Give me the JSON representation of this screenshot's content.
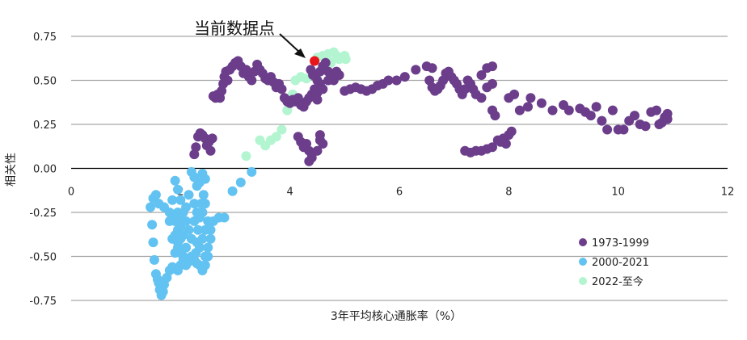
{
  "chart_data": {
    "type": "scatter",
    "title": "",
    "xlabel": "3年平均核心通胀率（%）",
    "ylabel": "相关性",
    "xlim": [
      0,
      12
    ],
    "ylim": [
      -0.75,
      0.8
    ],
    "x_ticks": [
      "0",
      "2",
      "4",
      "6",
      "8",
      "10",
      "12"
    ],
    "y_ticks": [
      "-0.75",
      "-0.50",
      "-0.25",
      "0.00",
      "0.25",
      "0.50",
      "0.75"
    ],
    "grid": "horizontal",
    "legend_position": "bottom-right",
    "annotation": {
      "text": "当前数据点",
      "x": 4.45,
      "y": 0.61,
      "color": "#e8151b"
    },
    "series": [
      {
        "name": "1973-1999",
        "color": "#6b3d8a",
        "points": [
          [
            2.25,
            0.08
          ],
          [
            2.28,
            0.12
          ],
          [
            2.32,
            0.18
          ],
          [
            2.36,
            0.2
          ],
          [
            2.4,
            0.19
          ],
          [
            2.45,
            0.17
          ],
          [
            2.48,
            0.13
          ],
          [
            2.52,
            0.15
          ],
          [
            2.58,
            0.17
          ],
          [
            2.55,
            0.1
          ],
          [
            2.6,
            0.41
          ],
          [
            2.64,
            0.4
          ],
          [
            2.68,
            0.42
          ],
          [
            2.72,
            0.4
          ],
          [
            2.75,
            0.44
          ],
          [
            2.78,
            0.48
          ],
          [
            2.8,
            0.52
          ],
          [
            2.83,
            0.55
          ],
          [
            2.86,
            0.5
          ],
          [
            2.9,
            0.56
          ],
          [
            2.95,
            0.58
          ],
          [
            3.0,
            0.6
          ],
          [
            3.05,
            0.61
          ],
          [
            3.1,
            0.58
          ],
          [
            3.15,
            0.54
          ],
          [
            3.2,
            0.56
          ],
          [
            3.25,
            0.52
          ],
          [
            3.3,
            0.5
          ],
          [
            3.35,
            0.55
          ],
          [
            3.4,
            0.59
          ],
          [
            3.45,
            0.56
          ],
          [
            3.5,
            0.54
          ],
          [
            3.55,
            0.51
          ],
          [
            3.6,
            0.5
          ],
          [
            3.65,
            0.52
          ],
          [
            3.7,
            0.49
          ],
          [
            3.75,
            0.46
          ],
          [
            3.8,
            0.48
          ],
          [
            3.85,
            0.45
          ],
          [
            3.9,
            0.4
          ],
          [
            3.95,
            0.38
          ],
          [
            4.0,
            0.37
          ],
          [
            4.05,
            0.39
          ],
          [
            4.1,
            0.38
          ],
          [
            4.15,
            0.4
          ],
          [
            4.2,
            0.36
          ],
          [
            4.25,
            0.35
          ],
          [
            4.3,
            0.38
          ],
          [
            4.35,
            0.4
          ],
          [
            4.4,
            0.42
          ],
          [
            4.45,
            0.45
          ],
          [
            4.5,
            0.5
          ],
          [
            4.42,
            0.53
          ],
          [
            4.38,
            0.56
          ],
          [
            4.55,
            0.55
          ],
          [
            4.6,
            0.58
          ],
          [
            4.65,
            0.6
          ],
          [
            4.7,
            0.55
          ],
          [
            4.75,
            0.52
          ],
          [
            4.8,
            0.5
          ],
          [
            4.85,
            0.55
          ],
          [
            4.9,
            0.53
          ],
          [
            4.55,
            0.48
          ],
          [
            4.5,
            0.43
          ],
          [
            4.5,
            0.39
          ],
          [
            4.6,
            0.45
          ],
          [
            4.7,
            0.5
          ],
          [
            4.15,
            0.18
          ],
          [
            4.2,
            0.15
          ],
          [
            4.25,
            0.12
          ],
          [
            4.3,
            0.14
          ],
          [
            4.35,
            0.1
          ],
          [
            4.4,
            0.06
          ],
          [
            4.35,
            0.04
          ],
          [
            4.4,
            0.08
          ],
          [
            4.55,
            0.16
          ],
          [
            4.6,
            0.14
          ],
          [
            4.55,
            0.19
          ],
          [
            4.5,
            0.1
          ],
          [
            5.0,
            0.44
          ],
          [
            5.1,
            0.45
          ],
          [
            5.2,
            0.46
          ],
          [
            5.3,
            0.45
          ],
          [
            5.4,
            0.44
          ],
          [
            5.5,
            0.45
          ],
          [
            5.6,
            0.47
          ],
          [
            5.7,
            0.48
          ],
          [
            5.8,
            0.5
          ],
          [
            5.95,
            0.5
          ],
          [
            6.1,
            0.52
          ],
          [
            6.3,
            0.56
          ],
          [
            6.5,
            0.58
          ],
          [
            6.6,
            0.57
          ],
          [
            6.55,
            0.5
          ],
          [
            6.6,
            0.46
          ],
          [
            6.65,
            0.44
          ],
          [
            6.7,
            0.45
          ],
          [
            6.75,
            0.47
          ],
          [
            6.8,
            0.5
          ],
          [
            6.85,
            0.54
          ],
          [
            6.9,
            0.55
          ],
          [
            6.95,
            0.52
          ],
          [
            7.0,
            0.5
          ],
          [
            7.05,
            0.48
          ],
          [
            7.1,
            0.45
          ],
          [
            7.15,
            0.42
          ],
          [
            7.2,
            0.45
          ],
          [
            7.25,
            0.5
          ],
          [
            7.3,
            0.48
          ],
          [
            7.35,
            0.45
          ],
          [
            7.4,
            0.42
          ],
          [
            7.5,
            0.4
          ],
          [
            7.6,
            0.46
          ],
          [
            7.7,
            0.48
          ],
          [
            7.5,
            0.53
          ],
          [
            7.6,
            0.57
          ],
          [
            7.7,
            0.58
          ],
          [
            7.2,
            0.1
          ],
          [
            7.3,
            0.09
          ],
          [
            7.4,
            0.1
          ],
          [
            7.5,
            0.1
          ],
          [
            7.6,
            0.11
          ],
          [
            7.7,
            0.12
          ],
          [
            7.8,
            0.16
          ],
          [
            7.9,
            0.17
          ],
          [
            8.0,
            0.19
          ],
          [
            8.05,
            0.21
          ],
          [
            7.95,
            0.14
          ],
          [
            7.85,
            0.15
          ],
          [
            7.75,
            0.3
          ],
          [
            7.7,
            0.33
          ],
          [
            8.0,
            0.4
          ],
          [
            8.1,
            0.42
          ],
          [
            8.2,
            0.33
          ],
          [
            8.35,
            0.35
          ],
          [
            8.4,
            0.4
          ],
          [
            8.6,
            0.37
          ],
          [
            8.8,
            0.33
          ],
          [
            9.0,
            0.36
          ],
          [
            9.1,
            0.33
          ],
          [
            9.3,
            0.34
          ],
          [
            9.4,
            0.32
          ],
          [
            9.5,
            0.3
          ],
          [
            9.6,
            0.35
          ],
          [
            9.7,
            0.27
          ],
          [
            9.8,
            0.22
          ],
          [
            9.9,
            0.33
          ],
          [
            10.0,
            0.22
          ],
          [
            10.1,
            0.22
          ],
          [
            10.2,
            0.27
          ],
          [
            10.3,
            0.3
          ],
          [
            10.4,
            0.25
          ],
          [
            10.5,
            0.24
          ],
          [
            10.6,
            0.32
          ],
          [
            10.7,
            0.33
          ],
          [
            10.75,
            0.25
          ],
          [
            10.8,
            0.26
          ],
          [
            10.85,
            0.29
          ],
          [
            10.9,
            0.31
          ],
          [
            10.9,
            0.28
          ]
        ]
      },
      {
        "name": "2000-2021",
        "color": "#62c2f1",
        "points": [
          [
            1.45,
            -0.22
          ],
          [
            1.48,
            -0.32
          ],
          [
            1.5,
            -0.42
          ],
          [
            1.52,
            -0.52
          ],
          [
            1.55,
            -0.6
          ],
          [
            1.58,
            -0.63
          ],
          [
            1.6,
            -0.65
          ],
          [
            1.62,
            -0.69
          ],
          [
            1.65,
            -0.72
          ],
          [
            1.68,
            -0.7
          ],
          [
            1.7,
            -0.66
          ],
          [
            1.75,
            -0.62
          ],
          [
            1.8,
            -0.58
          ],
          [
            1.85,
            -0.56
          ],
          [
            1.9,
            -0.57
          ],
          [
            1.95,
            -0.58
          ],
          [
            2.0,
            -0.55
          ],
          [
            2.05,
            -0.52
          ],
          [
            2.1,
            -0.55
          ],
          [
            2.15,
            -0.53
          ],
          [
            2.2,
            -0.5
          ],
          [
            2.25,
            -0.52
          ],
          [
            2.3,
            -0.54
          ],
          [
            2.35,
            -0.55
          ],
          [
            2.4,
            -0.58
          ],
          [
            2.45,
            -0.5
          ],
          [
            2.5,
            -0.45
          ],
          [
            2.55,
            -0.35
          ],
          [
            2.6,
            -0.3
          ],
          [
            2.7,
            -0.28
          ],
          [
            2.8,
            -0.28
          ],
          [
            1.5,
            -0.17
          ],
          [
            1.55,
            -0.15
          ],
          [
            1.6,
            -0.2
          ],
          [
            1.7,
            -0.22
          ],
          [
            1.8,
            -0.25
          ],
          [
            1.85,
            -0.28
          ],
          [
            1.9,
            -0.3
          ],
          [
            1.95,
            -0.35
          ],
          [
            2.0,
            -0.4
          ],
          [
            1.95,
            -0.45
          ],
          [
            1.9,
            -0.48
          ],
          [
            1.85,
            -0.4
          ],
          [
            1.8,
            -0.3
          ],
          [
            1.85,
            -0.18
          ],
          [
            1.9,
            -0.07
          ],
          [
            1.95,
            -0.12
          ],
          [
            2.0,
            -0.18
          ],
          [
            2.05,
            -0.25
          ],
          [
            2.1,
            -0.22
          ],
          [
            2.15,
            -0.15
          ],
          [
            2.2,
            -0.02
          ],
          [
            2.25,
            -0.05
          ],
          [
            2.3,
            -0.1
          ],
          [
            2.35,
            -0.08
          ],
          [
            2.4,
            -0.03
          ],
          [
            2.45,
            -0.06
          ],
          [
            2.42,
            -0.15
          ],
          [
            2.38,
            -0.2
          ],
          [
            2.35,
            -0.28
          ],
          [
            2.32,
            -0.35
          ],
          [
            2.3,
            -0.42
          ],
          [
            2.28,
            -0.48
          ],
          [
            2.35,
            -0.45
          ],
          [
            2.4,
            -0.4
          ],
          [
            2.45,
            -0.35
          ],
          [
            2.5,
            -0.3
          ],
          [
            2.55,
            -0.4
          ],
          [
            2.5,
            -0.5
          ],
          [
            2.45,
            -0.55
          ],
          [
            2.4,
            -0.25
          ],
          [
            2.45,
            -0.2
          ],
          [
            2.0,
            -0.3
          ],
          [
            2.05,
            -0.38
          ],
          [
            2.1,
            -0.45
          ],
          [
            2.05,
            -0.5
          ],
          [
            2.0,
            -0.33
          ],
          [
            1.95,
            -0.25
          ],
          [
            2.1,
            -0.3
          ],
          [
            2.15,
            -0.35
          ],
          [
            2.2,
            -0.4
          ],
          [
            2.25,
            -0.3
          ],
          [
            1.95,
            -0.42
          ],
          [
            2.0,
            -0.48
          ],
          [
            1.9,
            -0.38
          ],
          [
            2.3,
            -0.25
          ],
          [
            2.25,
            -0.2
          ],
          [
            2.95,
            -0.13
          ],
          [
            3.1,
            -0.08
          ],
          [
            3.3,
            -0.02
          ]
        ]
      },
      {
        "name": "2022-至今",
        "color": "#b3f5d1",
        "points": [
          [
            3.2,
            0.07
          ],
          [
            3.45,
            0.16
          ],
          [
            3.55,
            0.13
          ],
          [
            3.65,
            0.16
          ],
          [
            3.75,
            0.18
          ],
          [
            3.85,
            0.22
          ],
          [
            3.95,
            0.33
          ],
          [
            4.05,
            0.42
          ],
          [
            4.1,
            0.5
          ],
          [
            4.2,
            0.52
          ],
          [
            4.3,
            0.51
          ],
          [
            4.5,
            0.63
          ],
          [
            4.6,
            0.64
          ],
          [
            4.7,
            0.65
          ],
          [
            4.8,
            0.66
          ],
          [
            4.85,
            0.64
          ],
          [
            4.9,
            0.62
          ],
          [
            4.95,
            0.63
          ],
          [
            5.0,
            0.64
          ],
          [
            5.02,
            0.62
          ],
          [
            4.75,
            0.6
          ]
        ]
      }
    ]
  }
}
